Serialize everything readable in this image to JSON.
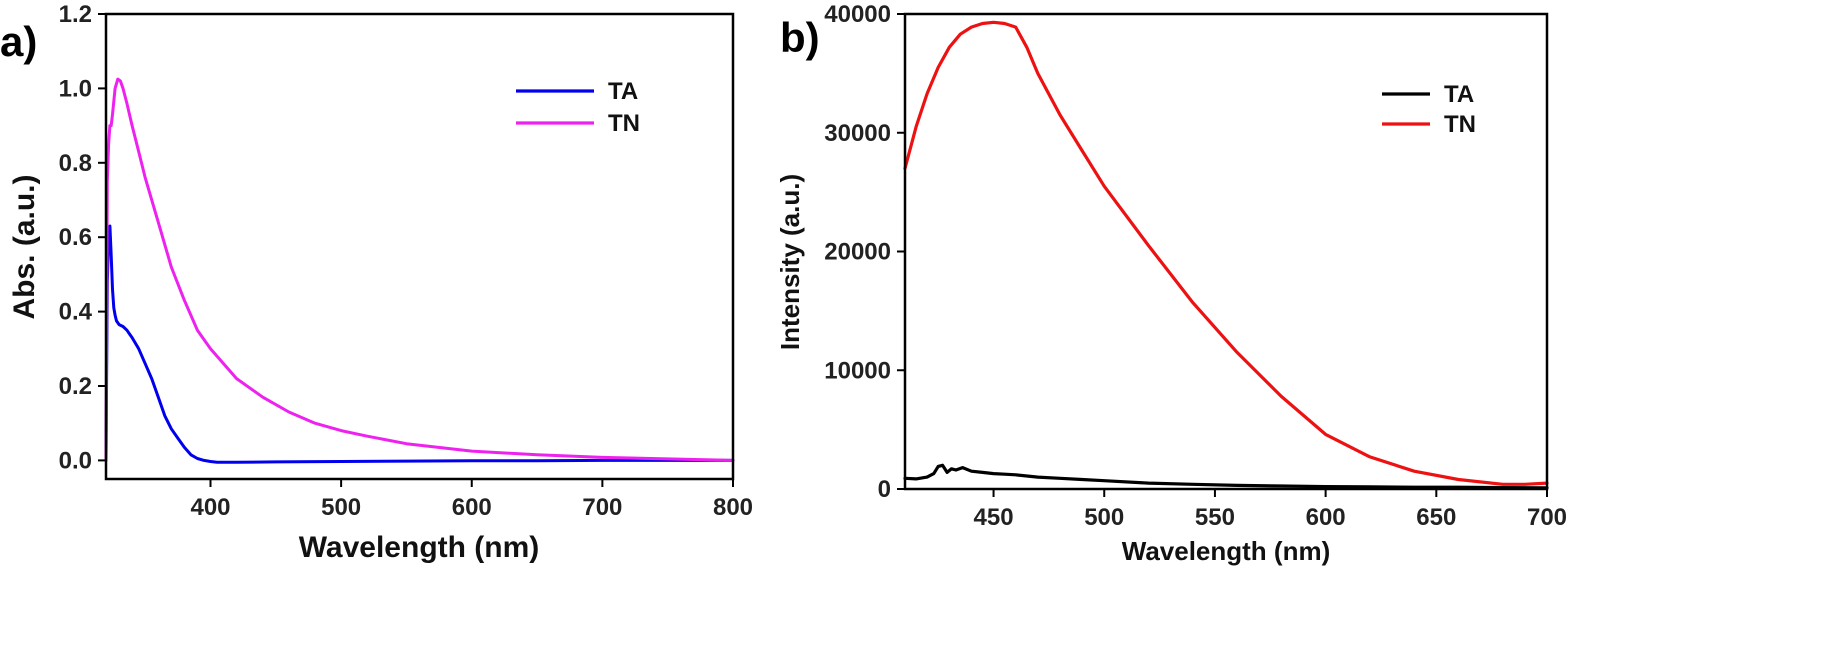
{
  "chart_data": [
    {
      "type": "line",
      "panel_label": "a)",
      "xlabel": "Wavelength (nm)",
      "ylabel": "Abs. (a.u.)",
      "xlim": [
        320,
        800
      ],
      "ylim": [
        -0.05,
        1.2
      ],
      "xticks": [
        400,
        500,
        600,
        700,
        800
      ],
      "yticks": [
        0.0,
        0.2,
        0.4,
        0.6,
        0.8,
        1.0,
        1.2
      ],
      "ytick_labels": [
        "0.0",
        "0.2",
        "0.4",
        "0.6",
        "0.8",
        "1.0",
        "1.2"
      ],
      "legend_position": "top-right",
      "grid": false,
      "series": [
        {
          "name": "TA",
          "color": "#0000ee",
          "x": [
            320,
            321,
            322,
            323,
            324,
            325,
            326,
            327,
            328,
            330,
            333,
            336,
            340,
            345,
            350,
            355,
            360,
            365,
            370,
            375,
            380,
            385,
            390,
            395,
            400,
            405,
            410,
            420,
            450,
            500,
            550,
            600,
            650,
            700,
            750,
            800
          ],
          "y": [
            0.0,
            0.48,
            0.6,
            0.63,
            0.55,
            0.46,
            0.41,
            0.39,
            0.375,
            0.365,
            0.36,
            0.35,
            0.33,
            0.3,
            0.26,
            0.22,
            0.17,
            0.12,
            0.085,
            0.06,
            0.035,
            0.015,
            0.005,
            0.0,
            -0.003,
            -0.005,
            -0.005,
            -0.005,
            -0.004,
            -0.003,
            -0.002,
            -0.001,
            -0.001,
            0.0,
            0.0,
            0.0
          ]
        },
        {
          "name": "TN",
          "color": "#ee22ee",
          "x": [
            320,
            321,
            322,
            323,
            324,
            325,
            327,
            329,
            331,
            333,
            336,
            340,
            345,
            350,
            360,
            370,
            380,
            390,
            400,
            410,
            420,
            440,
            460,
            480,
            500,
            520,
            550,
            600,
            650,
            700,
            750,
            800
          ],
          "y": [
            0.0,
            0.75,
            0.85,
            0.9,
            0.9,
            0.93,
            1.0,
            1.025,
            1.02,
            1.0,
            0.96,
            0.9,
            0.83,
            0.76,
            0.64,
            0.52,
            0.43,
            0.35,
            0.3,
            0.26,
            0.22,
            0.17,
            0.13,
            0.1,
            0.08,
            0.065,
            0.045,
            0.025,
            0.015,
            0.008,
            0.004,
            0.0
          ]
        }
      ]
    },
    {
      "type": "line",
      "panel_label": "b)",
      "xlabel": "Wavelength (nm)",
      "ylabel": "Intensity (a.u.)",
      "xlim": [
        410,
        700
      ],
      "ylim": [
        0,
        40000
      ],
      "xticks": [
        450,
        500,
        550,
        600,
        650,
        700
      ],
      "yticks": [
        0,
        10000,
        20000,
        30000,
        40000
      ],
      "ytick_labels": [
        "0",
        "10000",
        "20000",
        "30000",
        "40000"
      ],
      "legend_position": "top-right",
      "grid": false,
      "series": [
        {
          "name": "TA",
          "color": "#000000",
          "x": [
            410,
            415,
            420,
            423,
            425,
            427,
            429,
            431,
            433,
            436,
            440,
            445,
            450,
            455,
            460,
            470,
            480,
            490,
            500,
            520,
            540,
            560,
            580,
            600,
            620,
            640,
            660,
            680,
            700
          ],
          "y": [
            900,
            850,
            1000,
            1300,
            1900,
            2000,
            1400,
            1700,
            1600,
            1800,
            1500,
            1400,
            1300,
            1250,
            1200,
            1000,
            900,
            800,
            700,
            500,
            400,
            300,
            250,
            200,
            180,
            150,
            150,
            120,
            100
          ]
        },
        {
          "name": "TN",
          "color": "#ee1111",
          "x": [
            410,
            415,
            420,
            425,
            430,
            435,
            440,
            445,
            450,
            455,
            460,
            465,
            470,
            480,
            490,
            500,
            520,
            540,
            560,
            580,
            600,
            620,
            640,
            660,
            680,
            690,
            700
          ],
          "y": [
            27000,
            30500,
            33300,
            35500,
            37200,
            38300,
            38900,
            39200,
            39300,
            39200,
            38900,
            37200,
            35000,
            31500,
            28500,
            25500,
            20500,
            15700,
            11500,
            7800,
            4600,
            2700,
            1500,
            800,
            400,
            400,
            500
          ]
        }
      ]
    }
  ]
}
